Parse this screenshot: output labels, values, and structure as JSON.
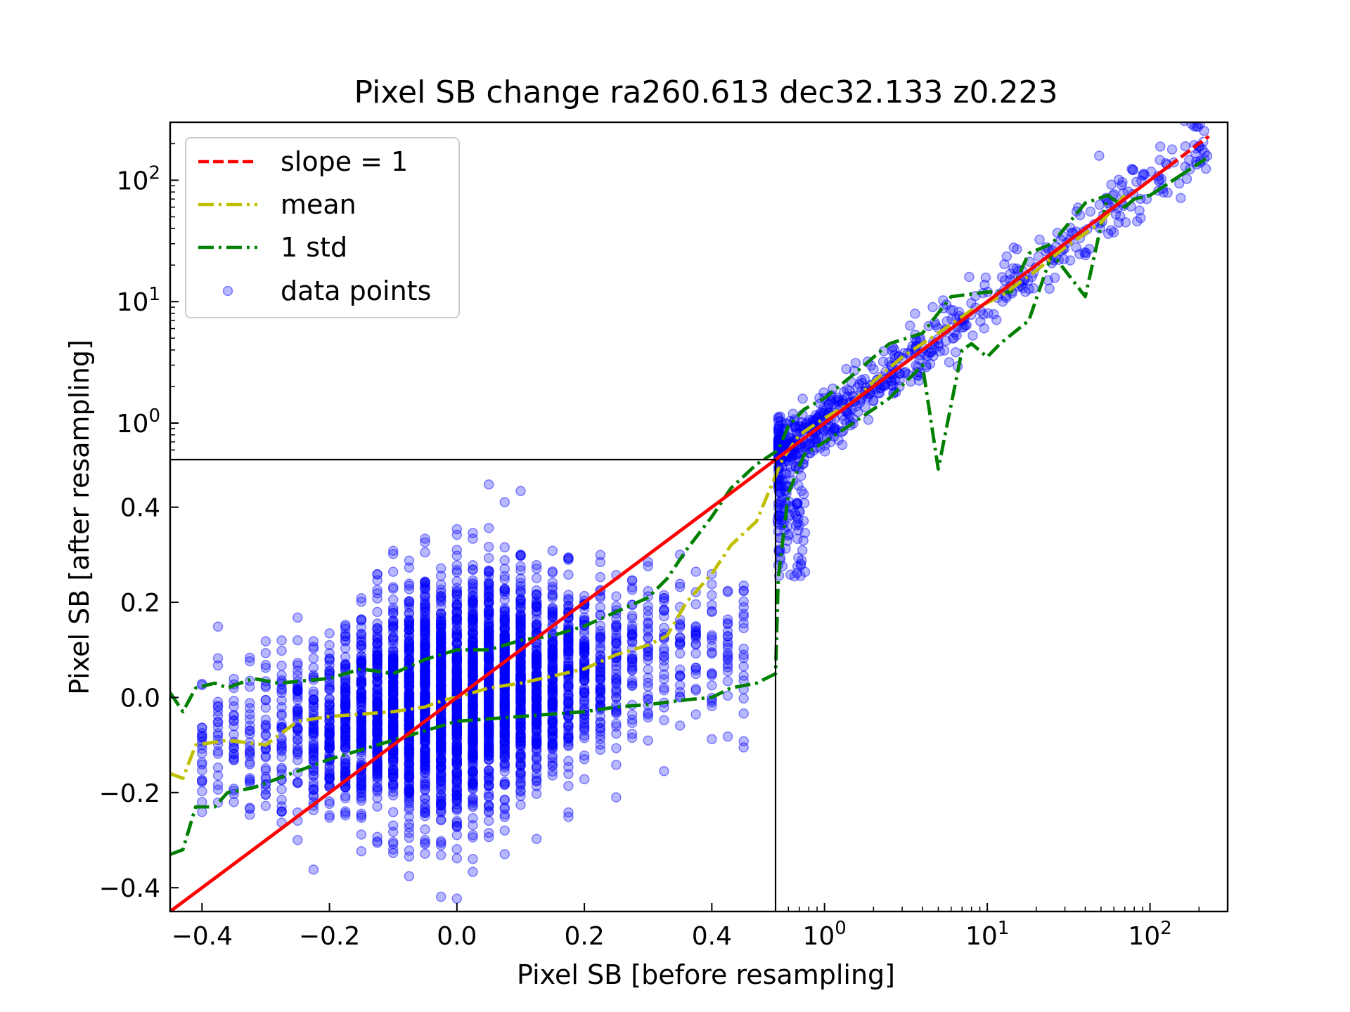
{
  "chart_data": {
    "type": "scatter",
    "title": "Pixel SB change ra260.613 dec32.133 z0.223",
    "xlabel": "Pixel SB [before resampling]",
    "ylabel": "Pixel SB [after resampling]",
    "scale": "symlog (linear below 0.5, log above)",
    "linear_threshold": 0.5,
    "xlim": [
      -0.45,
      300
    ],
    "ylim": [
      -0.45,
      300
    ],
    "x_ticks": {
      "linear": [
        {
          "value": -0.4,
          "label": "−0.4"
        },
        {
          "value": -0.2,
          "label": "−0.2"
        },
        {
          "value": 0.0,
          "label": "0.0"
        },
        {
          "value": 0.2,
          "label": "0.2"
        },
        {
          "value": 0.4,
          "label": "0.4"
        }
      ],
      "log": [
        {
          "value": 1,
          "base": "10",
          "exp": "0"
        },
        {
          "value": 10,
          "base": "10",
          "exp": "1"
        },
        {
          "value": 100,
          "base": "10",
          "exp": "2"
        }
      ]
    },
    "y_ticks": {
      "linear": [
        {
          "value": -0.4,
          "label": "−0.4"
        },
        {
          "value": -0.2,
          "label": "−0.2"
        },
        {
          "value": 0.0,
          "label": "0.0"
        },
        {
          "value": 0.2,
          "label": "0.2"
        },
        {
          "value": 0.4,
          "label": "0.4"
        }
      ],
      "log": [
        {
          "value": 1,
          "base": "10",
          "exp": "0"
        },
        {
          "value": 10,
          "base": "10",
          "exp": "1"
        },
        {
          "value": 100,
          "base": "10",
          "exp": "2"
        }
      ]
    },
    "legend": {
      "placement": "top-left",
      "entries": [
        {
          "label": "slope = 1",
          "color": "#ff0000",
          "style": "dashed"
        },
        {
          "label": "mean",
          "color": "#bfbf00",
          "style": "dashdot"
        },
        {
          "label": "1 std",
          "color": "#008000",
          "style": "dashdot"
        },
        {
          "label": "data points",
          "color": "#0000ff",
          "style": "marker"
        }
      ]
    },
    "colors": {
      "slope": "#ff0000",
      "mean": "#bfbf00",
      "std": "#008000",
      "points": "#0000ff"
    },
    "series": [
      {
        "name": "slope = 1",
        "kind": "line",
        "x": [
          -0.45,
          0.5,
          230
        ],
        "y": [
          -0.45,
          0.5,
          230
        ]
      },
      {
        "name": "mean",
        "kind": "line",
        "x": [
          -0.45,
          -0.43,
          -0.41,
          -0.36,
          -0.3,
          -0.25,
          -0.2,
          -0.15,
          -0.1,
          -0.05,
          -0.02,
          0.0,
          0.05,
          0.1,
          0.15,
          0.2,
          0.25,
          0.3,
          0.33,
          0.36,
          0.4,
          0.43,
          0.47,
          0.55,
          0.7,
          1.0,
          1.5,
          2,
          3,
          5,
          8,
          12,
          20,
          30,
          50,
          70
        ],
        "y": [
          -0.16,
          -0.17,
          -0.1,
          -0.09,
          -0.1,
          -0.05,
          -0.04,
          -0.035,
          -0.03,
          -0.02,
          -0.005,
          0.0,
          0.02,
          0.03,
          0.045,
          0.06,
          0.09,
          0.11,
          0.13,
          0.2,
          0.26,
          0.32,
          0.37,
          0.5,
          0.8,
          1.1,
          1.5,
          2.2,
          3.5,
          5.5,
          8.5,
          11,
          18,
          28,
          45,
          75
        ]
      },
      {
        "name": "1 std (upper)",
        "kind": "line",
        "x": [
          -0.45,
          -0.43,
          -0.41,
          -0.38,
          -0.36,
          -0.32,
          -0.28,
          -0.2,
          -0.15,
          -0.1,
          -0.05,
          0.0,
          0.05,
          0.1,
          0.15,
          0.2,
          0.25,
          0.3,
          0.33,
          0.36,
          0.4,
          0.43,
          0.47,
          0.52,
          0.6,
          0.75,
          1.0,
          1.5,
          2.5,
          4,
          6,
          10,
          14,
          18,
          25,
          40,
          55,
          70,
          80,
          100,
          220
        ],
        "y": [
          0.01,
          -0.03,
          0.02,
          0.03,
          0.02,
          0.04,
          0.03,
          0.04,
          0.06,
          0.05,
          0.08,
          0.1,
          0.1,
          0.12,
          0.13,
          0.15,
          0.18,
          0.21,
          0.25,
          0.31,
          0.38,
          0.44,
          0.49,
          0.6,
          0.95,
          1.3,
          1.6,
          2.5,
          4.5,
          5.5,
          11,
          12,
          12,
          25,
          30,
          65,
          75,
          60,
          70,
          75,
          150
        ]
      },
      {
        "name": "1 std (lower)",
        "kind": "line",
        "x": [
          -0.45,
          -0.43,
          -0.41,
          -0.38,
          -0.36,
          -0.32,
          -0.28,
          -0.2,
          -0.15,
          -0.1,
          -0.05,
          0.0,
          0.05,
          0.1,
          0.15,
          0.2,
          0.25,
          0.3,
          0.33,
          0.36,
          0.4,
          0.43,
          0.47,
          0.5,
          0.52,
          0.6,
          0.75,
          1.0,
          1.5,
          2.5,
          4,
          5,
          7,
          8,
          10,
          12,
          18,
          25,
          40,
          55,
          70,
          80,
          100,
          220
        ],
        "y": [
          -0.33,
          -0.32,
          -0.23,
          -0.23,
          -0.2,
          -0.19,
          -0.17,
          -0.13,
          -0.11,
          -0.09,
          -0.07,
          -0.05,
          -0.045,
          -0.04,
          -0.035,
          -0.03,
          -0.02,
          -0.015,
          -0.01,
          -0.005,
          0.0,
          0.02,
          0.03,
          0.05,
          0.25,
          0.43,
          0.55,
          0.7,
          1.0,
          1.6,
          3.0,
          0.48,
          4.0,
          4.5,
          3.5,
          4.5,
          7,
          25,
          11,
          75,
          60,
          70,
          75,
          150
        ]
      }
    ],
    "scatter_note": "about 9000 points, vertical columns at x = -0.40 .. 0.45 in steps of 0.025 with y roughly 0.3*x plus or minus 0.2, plus a cloud from x = 0.5 to 230 following y = x"
  }
}
